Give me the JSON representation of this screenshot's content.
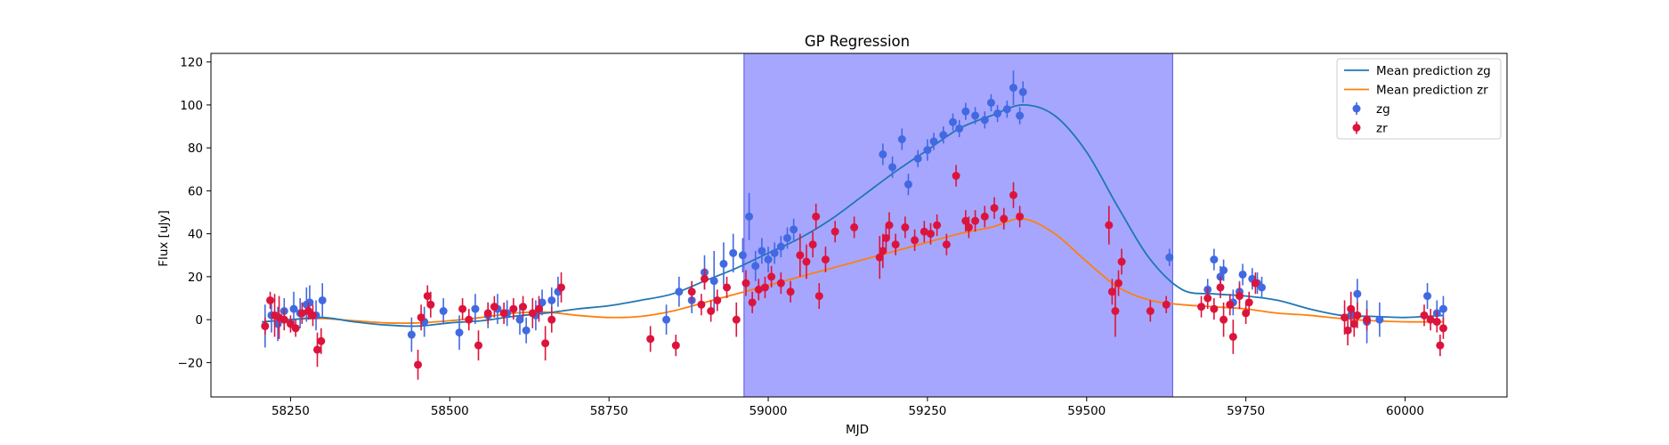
{
  "chart_data": {
    "type": "scatter",
    "title": "GP Regression",
    "xlabel": "MJD",
    "ylabel": "Flux [uJy]",
    "xlim": [
      58125,
      60160
    ],
    "ylim": [
      -36,
      124
    ],
    "xticks": [
      58250,
      58500,
      58750,
      59000,
      59250,
      59500,
      59750,
      60000
    ],
    "yticks": [
      -20,
      0,
      20,
      40,
      60,
      80,
      100,
      120
    ],
    "legend_position": "upper right",
    "shaded_region": {
      "x_start": 58962,
      "x_end": 59635,
      "color": "#a6a6ff"
    },
    "colors": {
      "zg_line": "#1f77b4",
      "zr_line": "#ff7f0e",
      "zg_points": "#4169e1",
      "zr_points": "#dc143c",
      "shade": "#a6a6ff"
    },
    "legend": [
      {
        "label": "Mean prediction zg",
        "kind": "line",
        "color": "#1f77b4"
      },
      {
        "label": "Mean prediction zr",
        "kind": "line",
        "color": "#ff7f0e"
      },
      {
        "label": "zg",
        "kind": "errorbar",
        "color": "#4169e1"
      },
      {
        "label": "zr",
        "kind": "errorbar",
        "color": "#dc143c"
      }
    ],
    "mean_zg": {
      "name": "Mean prediction zg",
      "x": [
        58205,
        58250,
        58300,
        58350,
        58400,
        58450,
        58500,
        58550,
        58600,
        58650,
        58700,
        58750,
        58800,
        58850,
        58900,
        58950,
        59000,
        59050,
        59100,
        59150,
        59200,
        59250,
        59300,
        59350,
        59400,
        59450,
        59500,
        59550,
        59600,
        59650,
        59700,
        59750,
        59800,
        59850,
        59900,
        59950,
        60000,
        60060
      ],
      "y": [
        -1,
        0,
        1,
        -1,
        -2.5,
        -3,
        -1.5,
        -0.5,
        1.5,
        3,
        5,
        6.5,
        9,
        12,
        18,
        24,
        31,
        38,
        47,
        58,
        69,
        79,
        89,
        95,
        100,
        95,
        78,
        52,
        28,
        14,
        12,
        11,
        9,
        5,
        2,
        1.5,
        1,
        2
      ]
    },
    "mean_zr": {
      "name": "Mean prediction zr",
      "x": [
        58205,
        58250,
        58300,
        58350,
        58400,
        58450,
        58500,
        58550,
        58600,
        58650,
        58700,
        58750,
        58800,
        58850,
        58900,
        58950,
        59000,
        59050,
        59100,
        59150,
        59200,
        59250,
        59300,
        59350,
        59400,
        59450,
        59500,
        59550,
        59600,
        59650,
        59700,
        59750,
        59800,
        59850,
        59900,
        59950,
        60000,
        60060
      ],
      "y": [
        -1,
        0,
        0.5,
        -0.5,
        -1.5,
        -1.5,
        -0.5,
        1,
        3,
        3.5,
        2,
        1,
        1.5,
        4,
        8,
        12,
        16,
        20,
        24,
        28,
        32,
        36,
        40,
        43,
        47,
        40,
        27,
        15,
        9,
        7,
        6,
        5,
        3,
        2,
        0.5,
        -0.5,
        -1,
        -1
      ]
    },
    "points_zg": {
      "name": "zg",
      "x": [
        58210,
        58220,
        58230,
        58240,
        58255,
        58265,
        58275,
        58280,
        58290,
        58300,
        58440,
        58460,
        58490,
        58515,
        58540,
        58560,
        58575,
        58590,
        58610,
        58620,
        58635,
        58645,
        58660,
        58670,
        58840,
        58860,
        58880,
        58900,
        58915,
        58930,
        58945,
        58960,
        58970,
        58980,
        58990,
        59000,
        59010,
        59020,
        59030,
        59040,
        59180,
        59195,
        59210,
        59220,
        59235,
        59250,
        59260,
        59275,
        59290,
        59300,
        59310,
        59325,
        59340,
        59350,
        59360,
        59375,
        59385,
        59395,
        59400,
        59630,
        59690,
        59700,
        59710,
        59715,
        59730,
        59740,
        59745,
        59760,
        59768,
        59775,
        59915,
        59925,
        59940,
        59960,
        60035,
        60050,
        60060
      ],
      "y": [
        -3,
        2,
        -2,
        4,
        5,
        3,
        7,
        8,
        2,
        9,
        -7,
        -1,
        4,
        -6,
        5,
        2,
        5,
        3,
        0,
        -5,
        2,
        8,
        9,
        13,
        0,
        13,
        9,
        22,
        18,
        26,
        31,
        30,
        48,
        25,
        32,
        28,
        31,
        34,
        38,
        42,
        77,
        71,
        84,
        63,
        75,
        79,
        83,
        86,
        92,
        89,
        97,
        95,
        93,
        101,
        96,
        98,
        108,
        95,
        106,
        29,
        14,
        28,
        20,
        23,
        8,
        13,
        21,
        19,
        17,
        15,
        2,
        12,
        -1,
        0,
        11,
        3,
        5
      ],
      "err": [
        10,
        8,
        8,
        6,
        8,
        7,
        8,
        8,
        7,
        8,
        8,
        7,
        6,
        8,
        7,
        6,
        7,
        6,
        7,
        6,
        7,
        6,
        6,
        7,
        7,
        7,
        6,
        8,
        14,
        10,
        9,
        8,
        11,
        7,
        6,
        6,
        5,
        5,
        5,
        5,
        5,
        5,
        5,
        5,
        4,
        5,
        4,
        4,
        4,
        4,
        4,
        4,
        4,
        4,
        4,
        4,
        8,
        4,
        5,
        4,
        5,
        5,
        5,
        5,
        6,
        5,
        5,
        5,
        5,
        5,
        8,
        7,
        10,
        8,
        6,
        6,
        6
      ]
    },
    "points_zr": {
      "name": "zr",
      "x": [
        58210,
        58218,
        58225,
        58232,
        58240,
        58250,
        58258,
        58268,
        58278,
        58285,
        58292,
        58298,
        58450,
        58455,
        58465,
        58470,
        58520,
        58530,
        58545,
        58560,
        58570,
        58585,
        58600,
        58615,
        58630,
        58640,
        58650,
        58660,
        58675,
        58815,
        58855,
        58880,
        58895,
        58900,
        58910,
        58920,
        58935,
        58950,
        58965,
        58975,
        58985,
        58995,
        59005,
        59020,
        59035,
        59050,
        59060,
        59070,
        59075,
        59080,
        59090,
        59105,
        59135,
        59175,
        59180,
        59185,
        59190,
        59200,
        59215,
        59230,
        59245,
        59255,
        59265,
        59280,
        59295,
        59310,
        59315,
        59325,
        59340,
        59355,
        59370,
        59385,
        59395,
        59535,
        59540,
        59545,
        59550,
        59555,
        59600,
        59625,
        59680,
        59690,
        59700,
        59710,
        59715,
        59725,
        59730,
        59740,
        59750,
        59755,
        59765,
        59905,
        59910,
        59915,
        59920,
        59925,
        59940,
        60030,
        60040,
        60050,
        60055,
        60060
      ],
      "y": [
        -3,
        9,
        2,
        1,
        0,
        -2,
        -4,
        3,
        4,
        2,
        -14,
        -10,
        -21,
        1,
        11,
        7,
        5,
        0,
        -12,
        3,
        6,
        3,
        5,
        6,
        3,
        5,
        -11,
        0,
        15,
        -9,
        -12,
        13,
        7,
        19,
        4,
        9,
        15,
        0,
        17,
        8,
        14,
        15,
        20,
        17,
        13,
        30,
        27,
        35,
        48,
        11,
        28,
        41,
        43,
        29,
        32,
        38,
        44,
        35,
        43,
        37,
        41,
        40,
        44,
        35,
        67,
        46,
        43,
        46,
        48,
        52,
        47,
        58,
        48,
        44,
        13,
        4,
        17,
        27,
        4,
        7,
        6,
        10,
        5,
        15,
        0,
        7,
        -8,
        11,
        3,
        8,
        17,
        1,
        -5,
        5,
        -2,
        2,
        0,
        2,
        0,
        -1,
        -12,
        -4
      ],
      "err": [
        4,
        4,
        10,
        10,
        5,
        4,
        4,
        5,
        4,
        5,
        8,
        6,
        7,
        6,
        5,
        6,
        5,
        5,
        7,
        5,
        5,
        5,
        5,
        5,
        7,
        6,
        8,
        6,
        7,
        6,
        5,
        5,
        5,
        5,
        5,
        5,
        5,
        8,
        6,
        5,
        5,
        5,
        5,
        5,
        5,
        10,
        8,
        6,
        6,
        6,
        6,
        5,
        5,
        10,
        8,
        6,
        6,
        5,
        5,
        5,
        5,
        5,
        5,
        5,
        5,
        5,
        5,
        5,
        5,
        5,
        5,
        6,
        5,
        9,
        6,
        12,
        6,
        6,
        5,
        4,
        5,
        5,
        5,
        5,
        8,
        5,
        8,
        6,
        5,
        5,
        5,
        8,
        7,
        8,
        6,
        6,
        5,
        5,
        5,
        5,
        5,
        5
      ]
    }
  }
}
